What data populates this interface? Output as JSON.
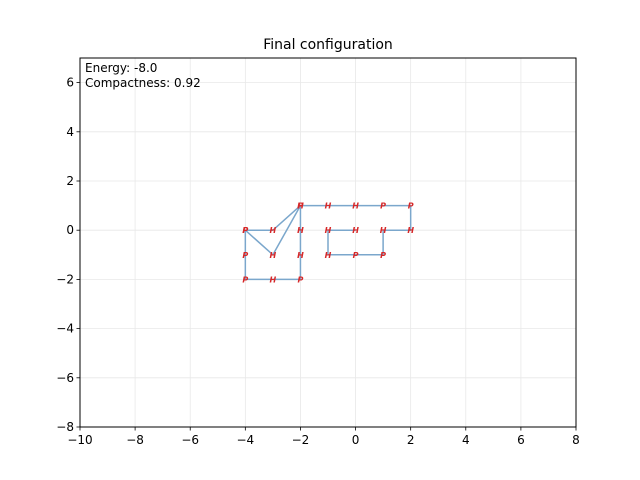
{
  "chart_data": {
    "type": "line",
    "title": "Final configuration",
    "xlabel": "",
    "ylabel": "",
    "xlim": [
      -10,
      8
    ],
    "ylim": [
      -8,
      7
    ],
    "xticks": [
      -10,
      -8,
      -6,
      -4,
      -2,
      0,
      2,
      4,
      6,
      8
    ],
    "yticks": [
      -8,
      -6,
      -4,
      -2,
      0,
      2,
      4,
      6
    ],
    "xtick_labels": [
      "−10",
      "−8",
      "−6",
      "−4",
      "−2",
      "0",
      "2",
      "4",
      "6",
      "8"
    ],
    "ytick_labels": [
      "−8",
      "−6",
      "−4",
      "−2",
      "0",
      "2",
      "4",
      "6"
    ],
    "grid": true,
    "annotations": [
      "Energy: -8.0",
      "Compactness: 0.92"
    ],
    "chain": {
      "x": [
        -4,
        -4,
        -4,
        -3,
        -2,
        -2,
        -2,
        -2,
        -3,
        -4,
        -3,
        -2,
        -1,
        0,
        1,
        2,
        2,
        1,
        1,
        0,
        -1,
        -1,
        0
      ],
      "y": [
        0,
        -1,
        -2,
        -2,
        -2,
        -1,
        0,
        1,
        0,
        0,
        -1,
        1,
        1,
        1,
        1,
        1,
        0,
        0,
        -1,
        -1,
        -1,
        0,
        0
      ],
      "residues": [
        "P",
        "P",
        "P",
        "H",
        "P",
        "H",
        "H",
        "P",
        "H",
        "P",
        "H",
        "H",
        "H",
        "H",
        "P",
        "P",
        "H",
        "H",
        "P",
        "P",
        "H",
        "H",
        "H"
      ]
    },
    "colors": {
      "chain_line": "#7ba7cc",
      "residue_label": "#d62728",
      "grid": "#e8e8e8"
    }
  }
}
